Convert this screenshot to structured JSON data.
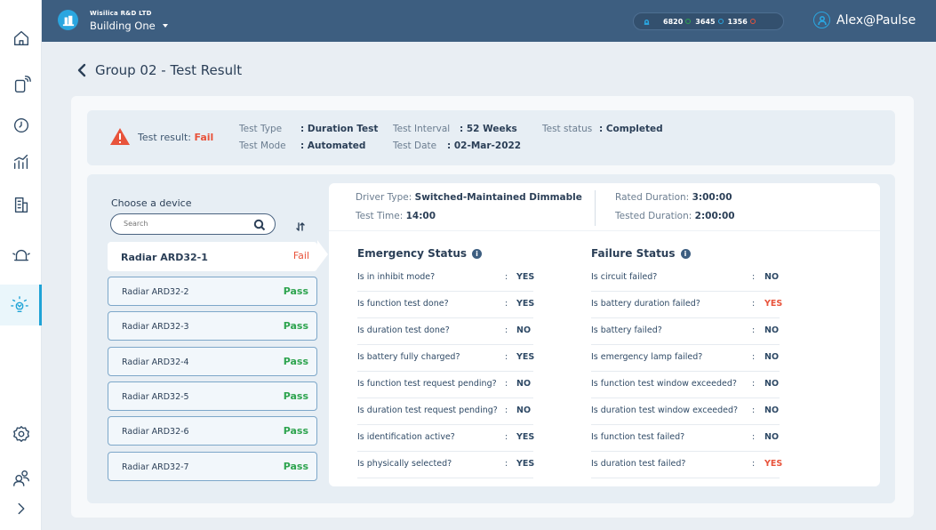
{
  "topbar": {
    "org": "Wisilica R&D LTD",
    "building": "Building One",
    "stats": [
      {
        "value": "6820",
        "color": "#2ea44f"
      },
      {
        "value": "3645",
        "color": "#2aa6e0"
      },
      {
        "value": "1356",
        "color": "#e8533b"
      }
    ],
    "user": "Alex@Paulse"
  },
  "sidebar": {
    "items": [
      {
        "icon": "home-icon"
      },
      {
        "icon": "device-icon"
      },
      {
        "icon": "clock-icon"
      },
      {
        "icon": "analytics-icon"
      },
      {
        "icon": "building-icon"
      },
      {
        "icon": "alert-icon"
      },
      {
        "icon": "emergency-light-icon",
        "active": true
      },
      {
        "icon": "settings-icon"
      },
      {
        "icon": "users-icon"
      },
      {
        "icon": "expand-icon"
      }
    ]
  },
  "page": {
    "title": "Group 02 - Test Result"
  },
  "summary": {
    "result_label": "Test result:",
    "result_value": "Fail",
    "test_type_label": "Test Type",
    "test_type_value": ": Duration Test",
    "test_mode_label": "Test Mode",
    "test_mode_value": ": Automated",
    "interval_label": "Test Interval",
    "interval_value": ": 52 Weeks",
    "date_label": "Test Date",
    "date_value": ": 02-Mar-2022",
    "status_label": "Test status",
    "status_value": ": Completed"
  },
  "devices": {
    "title": "Choose a device",
    "search_placeholder": "Search",
    "items": [
      {
        "name": "Radiar ARD32-1",
        "status": "Fail"
      },
      {
        "name": "Radiar ARD32-2",
        "status": "Pass"
      },
      {
        "name": "Radiar ARD32-3",
        "status": "Pass"
      },
      {
        "name": "Radiar ARD32-4",
        "status": "Pass"
      },
      {
        "name": "Radiar ARD32-5",
        "status": "Pass"
      },
      {
        "name": "Radiar ARD32-6",
        "status": "Pass"
      },
      {
        "name": "Radiar ARD32-7",
        "status": "Pass"
      }
    ]
  },
  "detail": {
    "driver_label": "Driver Type:",
    "driver_value": "Switched-Maintained Dimmable",
    "time_label": "Test Time:",
    "time_value": "14:00",
    "rated_label": "Rated Duration:",
    "rated_value": "3:00:00",
    "tested_label": "Tested Duration:",
    "tested_value": "2:00:00",
    "emergency_title": "Emergency Status",
    "failure_title": "Failure Status",
    "emergency": [
      {
        "q": "Is in inhibit mode?",
        "v": "YES"
      },
      {
        "q": "Is function test done?",
        "v": "YES"
      },
      {
        "q": "Is duration test done?",
        "v": "NO"
      },
      {
        "q": "Is battery fully charged?",
        "v": "YES"
      },
      {
        "q": "Is function test request pending?",
        "v": "NO"
      },
      {
        "q": "Is duration test request pending?",
        "v": "NO"
      },
      {
        "q": "Is identification active?",
        "v": "YES"
      },
      {
        "q": "Is physically selected?",
        "v": "YES"
      }
    ],
    "failure": [
      {
        "q": "Is circuit failed?",
        "v": "NO"
      },
      {
        "q": "Is battery duration failed?",
        "v": "YES"
      },
      {
        "q": "Is battery failed?",
        "v": "NO"
      },
      {
        "q": "Is emergency lamp failed?",
        "v": "NO"
      },
      {
        "q": "Is function test window exceeded?",
        "v": "NO"
      },
      {
        "q": "Is duration test window exceeded?",
        "v": "NO"
      },
      {
        "q": "Is function test failed?",
        "v": "NO"
      },
      {
        "q": "Is duration test failed?",
        "v": "YES"
      }
    ]
  }
}
